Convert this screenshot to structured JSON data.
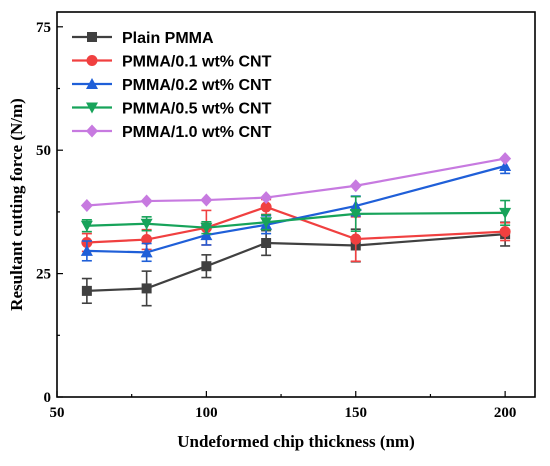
{
  "chart_data": {
    "type": "line",
    "xlabel": "Undeformed chip thickness (nm)",
    "ylabel": "Resultant cutting force (N/m)",
    "xlim": [
      50,
      210
    ],
    "ylim": [
      0,
      78
    ],
    "xticks": [
      50,
      100,
      150,
      200
    ],
    "yticks": [
      0,
      25,
      50,
      75
    ],
    "legend_position": "top-left",
    "x": [
      60,
      80,
      100,
      120,
      150,
      200
    ],
    "series": [
      {
        "name": "Plain PMMA",
        "color": "#404040",
        "marker": "square",
        "values": [
          21.5,
          22.0,
          26.5,
          31.2,
          30.7,
          33.0
        ],
        "errors": [
          2.5,
          3.5,
          2.3,
          2.5,
          3.3,
          2.4
        ]
      },
      {
        "name": "PMMA/0.1 wt% CNT",
        "color": "#f04040",
        "marker": "circle",
        "values": [
          31.3,
          31.9,
          34.3,
          38.5,
          32.0,
          33.5
        ],
        "errors": [
          1.8,
          2.0,
          3.5,
          1.5,
          4.5,
          1.8
        ]
      },
      {
        "name": "PMMA/0.2 wt% CNT",
        "color": "#1f5fd8",
        "marker": "triangle-up",
        "values": [
          29.6,
          29.3,
          32.8,
          34.9,
          38.7,
          46.8
        ],
        "errors": [
          2.0,
          1.8,
          2.0,
          1.8,
          2.0,
          1.5
        ]
      },
      {
        "name": "PMMA/0.5 wt% CNT",
        "color": "#17a35a",
        "marker": "triangle-down",
        "values": [
          34.7,
          35.1,
          34.3,
          35.4,
          37.1,
          37.3
        ],
        "errors": [
          1.2,
          1.4,
          1.2,
          1.5,
          3.5,
          2.5
        ]
      },
      {
        "name": "PMMA/1.0 wt% CNT",
        "color": "#c77ae0",
        "marker": "diamond",
        "values": [
          38.8,
          39.7,
          39.9,
          40.4,
          42.8,
          48.3
        ],
        "errors": [
          0,
          0,
          0,
          0,
          0,
          0
        ]
      }
    ]
  }
}
